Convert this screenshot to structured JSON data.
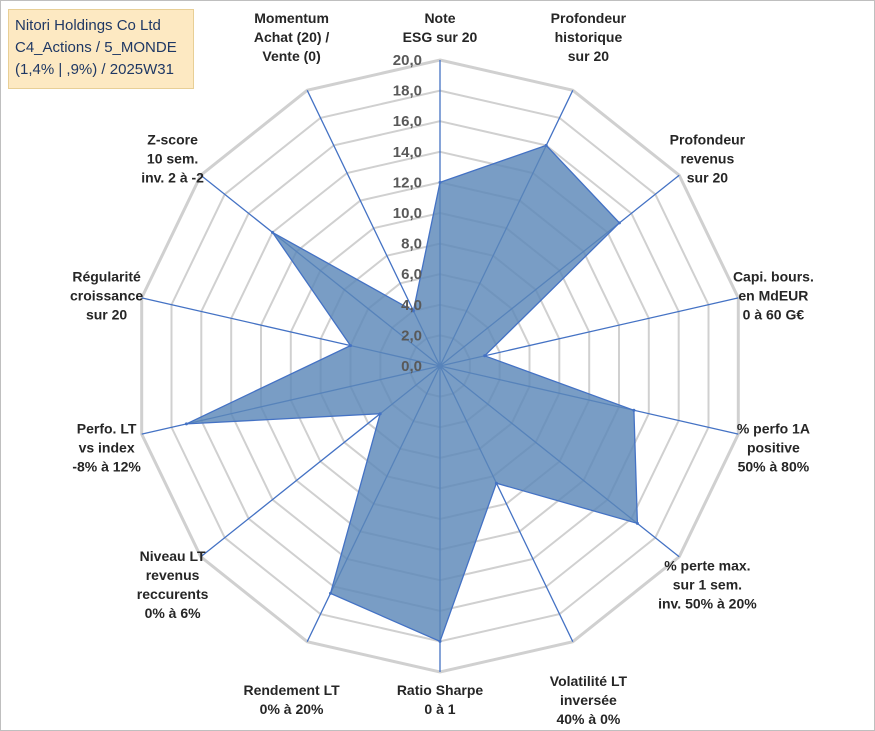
{
  "title": {
    "lines": [
      "Nitori Holdings Co Ltd",
      "C4_Actions / 5_MONDE",
      "(1,4% | ,9%) / 2025W31"
    ]
  },
  "chart_data": {
    "type": "radar",
    "title": "Nitori Holdings Co Ltd C4_Actions / 5_MONDE (1,4% | ,9%) / 2025W31",
    "r_range": [
      0,
      20
    ],
    "r_ticks": [
      0,
      2,
      4,
      6,
      8,
      10,
      12,
      14,
      16,
      18,
      20
    ],
    "r_tick_labels": [
      "0,0",
      "2,0",
      "4,0",
      "6,0",
      "8,0",
      "10,0",
      "12,0",
      "14,0",
      "16,0",
      "18,0",
      "20,0"
    ],
    "grid": true,
    "legend": "none",
    "fill_color": "#5b87b8",
    "line_color": "#4472c4",
    "grid_color": "#d0d0d0",
    "categories": [
      {
        "label": [
          "Note",
          "ESG sur 20"
        ],
        "value": 12.0
      },
      {
        "label": [
          "Profondeur",
          "historique",
          "sur 20"
        ],
        "value": 16.0
      },
      {
        "label": [
          "Profondeur",
          "revenus",
          "sur 20"
        ],
        "value": 15.0
      },
      {
        "label": [
          "Capi. bours.",
          "en MdEUR",
          "0 à 60 G€"
        ],
        "value": 3.0
      },
      {
        "label": [
          "% perfo 1A",
          "positive",
          "50% à 80%"
        ],
        "value": 13.0
      },
      {
        "label": [
          "% perte max.",
          "sur 1 sem.",
          "inv. 50% à 20%"
        ],
        "value": 16.5
      },
      {
        "label": [
          "Volatilité LT",
          "inversée",
          "40% à 0%"
        ],
        "value": 8.5
      },
      {
        "label": [
          "Ratio Sharpe",
          "0 à 1"
        ],
        "value": 18.0
      },
      {
        "label": [
          "Rendement LT",
          "0% à 20%"
        ],
        "value": 16.5
      },
      {
        "label": [
          "Niveau LT",
          "revenus",
          "reccurents",
          "0% à 6%"
        ],
        "value": 5.0
      },
      {
        "label": [
          "Perfo. LT",
          "vs index",
          "-8% à 12%"
        ],
        "value": 17.0
      },
      {
        "label": [
          "Régularité",
          "croissance",
          "sur 20"
        ],
        "value": 6.0
      },
      {
        "label": [
          "Z-score",
          "10 sem.",
          "inv. 2 à -2"
        ],
        "value": 14.0
      },
      {
        "label": [
          "Momentum",
          "Achat (20) /",
          "Vente (0)"
        ],
        "value": 4.0
      }
    ]
  }
}
